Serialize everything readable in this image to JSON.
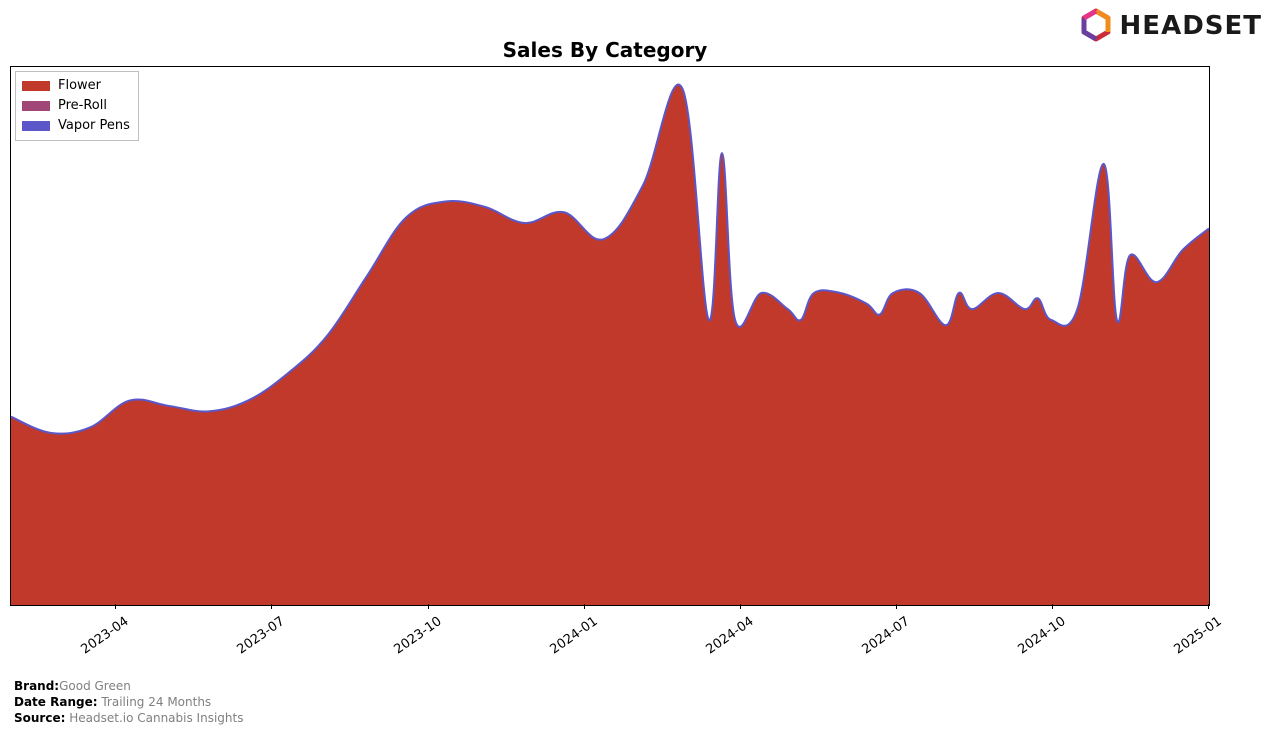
{
  "title": "Sales By Category",
  "title_fontsize": 20,
  "title_fontweight": "bold",
  "logo_text": "HEADSET",
  "legend_items": [
    {
      "label": "Flower",
      "color": "#c0392b"
    },
    {
      "label": "Pre-Roll",
      "color": "#a04778"
    },
    {
      "label": "Vapor Pens",
      "color": "#5b57c8"
    }
  ],
  "chart": {
    "type": "area",
    "background_color": "#ffffff",
    "border_color": "#000000",
    "x_categories": [
      "2023-04",
      "2023-07",
      "2023-10",
      "2024-01",
      "2024-04",
      "2024-07",
      "2024-10",
      "2025-01"
    ],
    "xlim_index": [
      0,
      91
    ],
    "ylim": [
      0,
      100
    ],
    "tick_fontsize": 13,
    "tick_rotation_deg": -35,
    "line_width": 2,
    "series": [
      {
        "name": "Flower",
        "color": "#c0392b",
        "edge_color": "#5b57c8",
        "x_index": [
          0,
          3,
          6,
          9,
          12,
          15,
          18,
          21,
          24,
          27,
          30,
          33,
          36,
          39,
          42,
          45,
          48,
          51,
          54,
          57,
          60,
          63,
          66,
          69,
          72,
          75,
          78,
          81,
          84,
          87,
          91
        ],
        "y": [
          35,
          32,
          33,
          38,
          37,
          36,
          38,
          43,
          50,
          61,
          72,
          75,
          74,
          71,
          73,
          68,
          78,
          96,
          84,
          58,
          53,
          53,
          54,
          58,
          58,
          55,
          57,
          55,
          53,
          54,
          53
        ]
      },
      {
        "name": "Flower_tail",
        "color": "#c0392b",
        "edge_color": "#5b57c8",
        "x_index": [
          53,
          55,
          57,
          59,
          61,
          63,
          65,
          67,
          69,
          71,
          73,
          75,
          77,
          79,
          81,
          83,
          85,
          87,
          89,
          91
        ],
        "y": [
          53,
          53,
          53,
          55,
          58,
          58,
          56,
          58,
          55,
          52,
          55,
          58,
          55,
          53,
          55,
          82,
          65,
          60,
          66,
          70
        ]
      }
    ]
  },
  "metadata": [
    {
      "label": "Brand:",
      "value": "Good Green"
    },
    {
      "label": "Date Range:",
      "value": " Trailing 24 Months"
    },
    {
      "label": "Source:",
      "value": " Headset.io Cannabis Insights"
    }
  ]
}
